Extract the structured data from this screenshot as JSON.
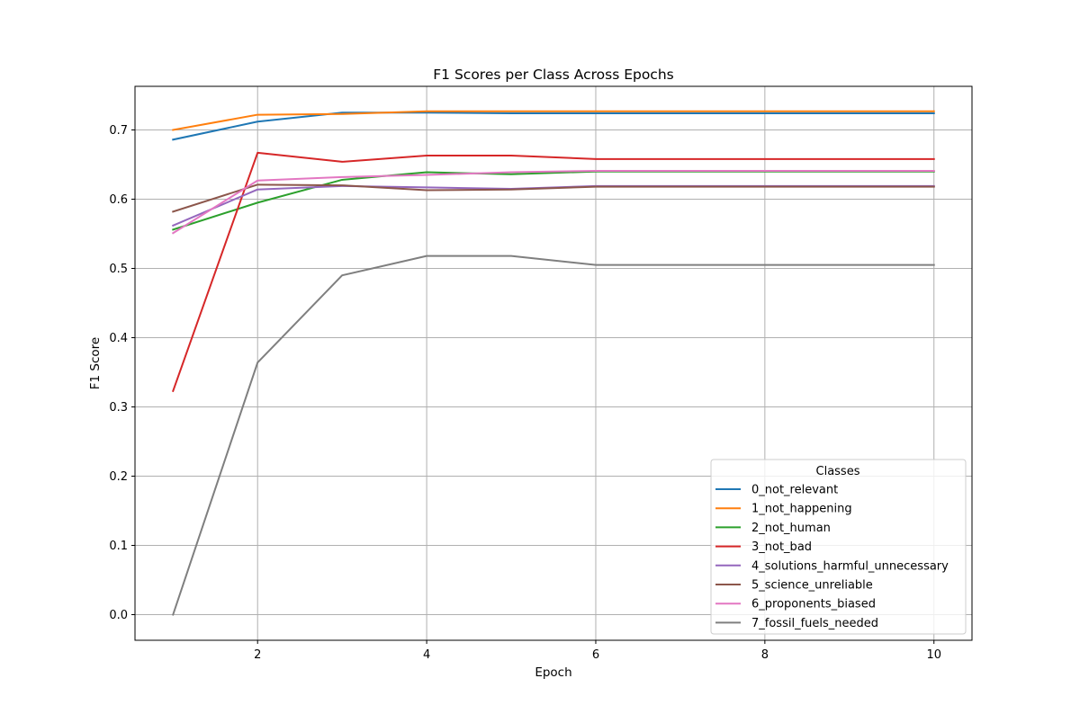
{
  "chart_data": {
    "type": "line",
    "title": "F1 Scores per Class Across Epochs",
    "xlabel": "Epoch",
    "ylabel": "F1 Score",
    "xlim": [
      0.55,
      10.45
    ],
    "ylim": [
      -0.037,
      0.763
    ],
    "xticks": [
      2,
      4,
      6,
      8,
      10
    ],
    "yticks": [
      0.0,
      0.1,
      0.2,
      0.3,
      0.4,
      0.5,
      0.6,
      0.7
    ],
    "grid": true,
    "legend": {
      "title": "Classes",
      "placement": "lower right"
    },
    "x": [
      1,
      2,
      3,
      4,
      5,
      6,
      7,
      8,
      9,
      10
    ],
    "series": [
      {
        "name": "0_not_relevant",
        "color": "#1f77b4",
        "values": [
          0.686,
          0.712,
          0.725,
          0.725,
          0.724,
          0.724,
          0.724,
          0.724,
          0.724,
          0.724
        ]
      },
      {
        "name": "1_not_happening",
        "color": "#ff7f0e",
        "values": [
          0.7,
          0.722,
          0.723,
          0.727,
          0.727,
          0.727,
          0.727,
          0.727,
          0.727,
          0.727
        ]
      },
      {
        "name": "2_not_human",
        "color": "#2ca02c",
        "values": [
          0.556,
          0.595,
          0.628,
          0.639,
          0.636,
          0.64,
          0.64,
          0.64,
          0.64,
          0.64
        ]
      },
      {
        "name": "3_not_bad",
        "color": "#d62728",
        "values": [
          0.323,
          0.667,
          0.654,
          0.663,
          0.663,
          0.658,
          0.658,
          0.658,
          0.658,
          0.658
        ]
      },
      {
        "name": "4_solutions_harmful_unnecessary",
        "color": "#9467bd",
        "values": [
          0.562,
          0.614,
          0.619,
          0.617,
          0.615,
          0.619,
          0.619,
          0.619,
          0.619,
          0.619
        ]
      },
      {
        "name": "5_science_unreliable",
        "color": "#8c564b",
        "values": [
          0.582,
          0.621,
          0.62,
          0.613,
          0.614,
          0.618,
          0.618,
          0.618,
          0.618,
          0.618
        ]
      },
      {
        "name": "6_proponents_biased",
        "color": "#e377c2",
        "values": [
          0.551,
          0.627,
          0.632,
          0.635,
          0.639,
          0.641,
          0.641,
          0.641,
          0.641,
          0.641
        ]
      },
      {
        "name": "7_fossil_fuels_needed",
        "color": "#7f7f7f",
        "values": [
          0.0,
          0.364,
          0.49,
          0.518,
          0.518,
          0.505,
          0.505,
          0.505,
          0.505,
          0.505
        ]
      }
    ]
  }
}
